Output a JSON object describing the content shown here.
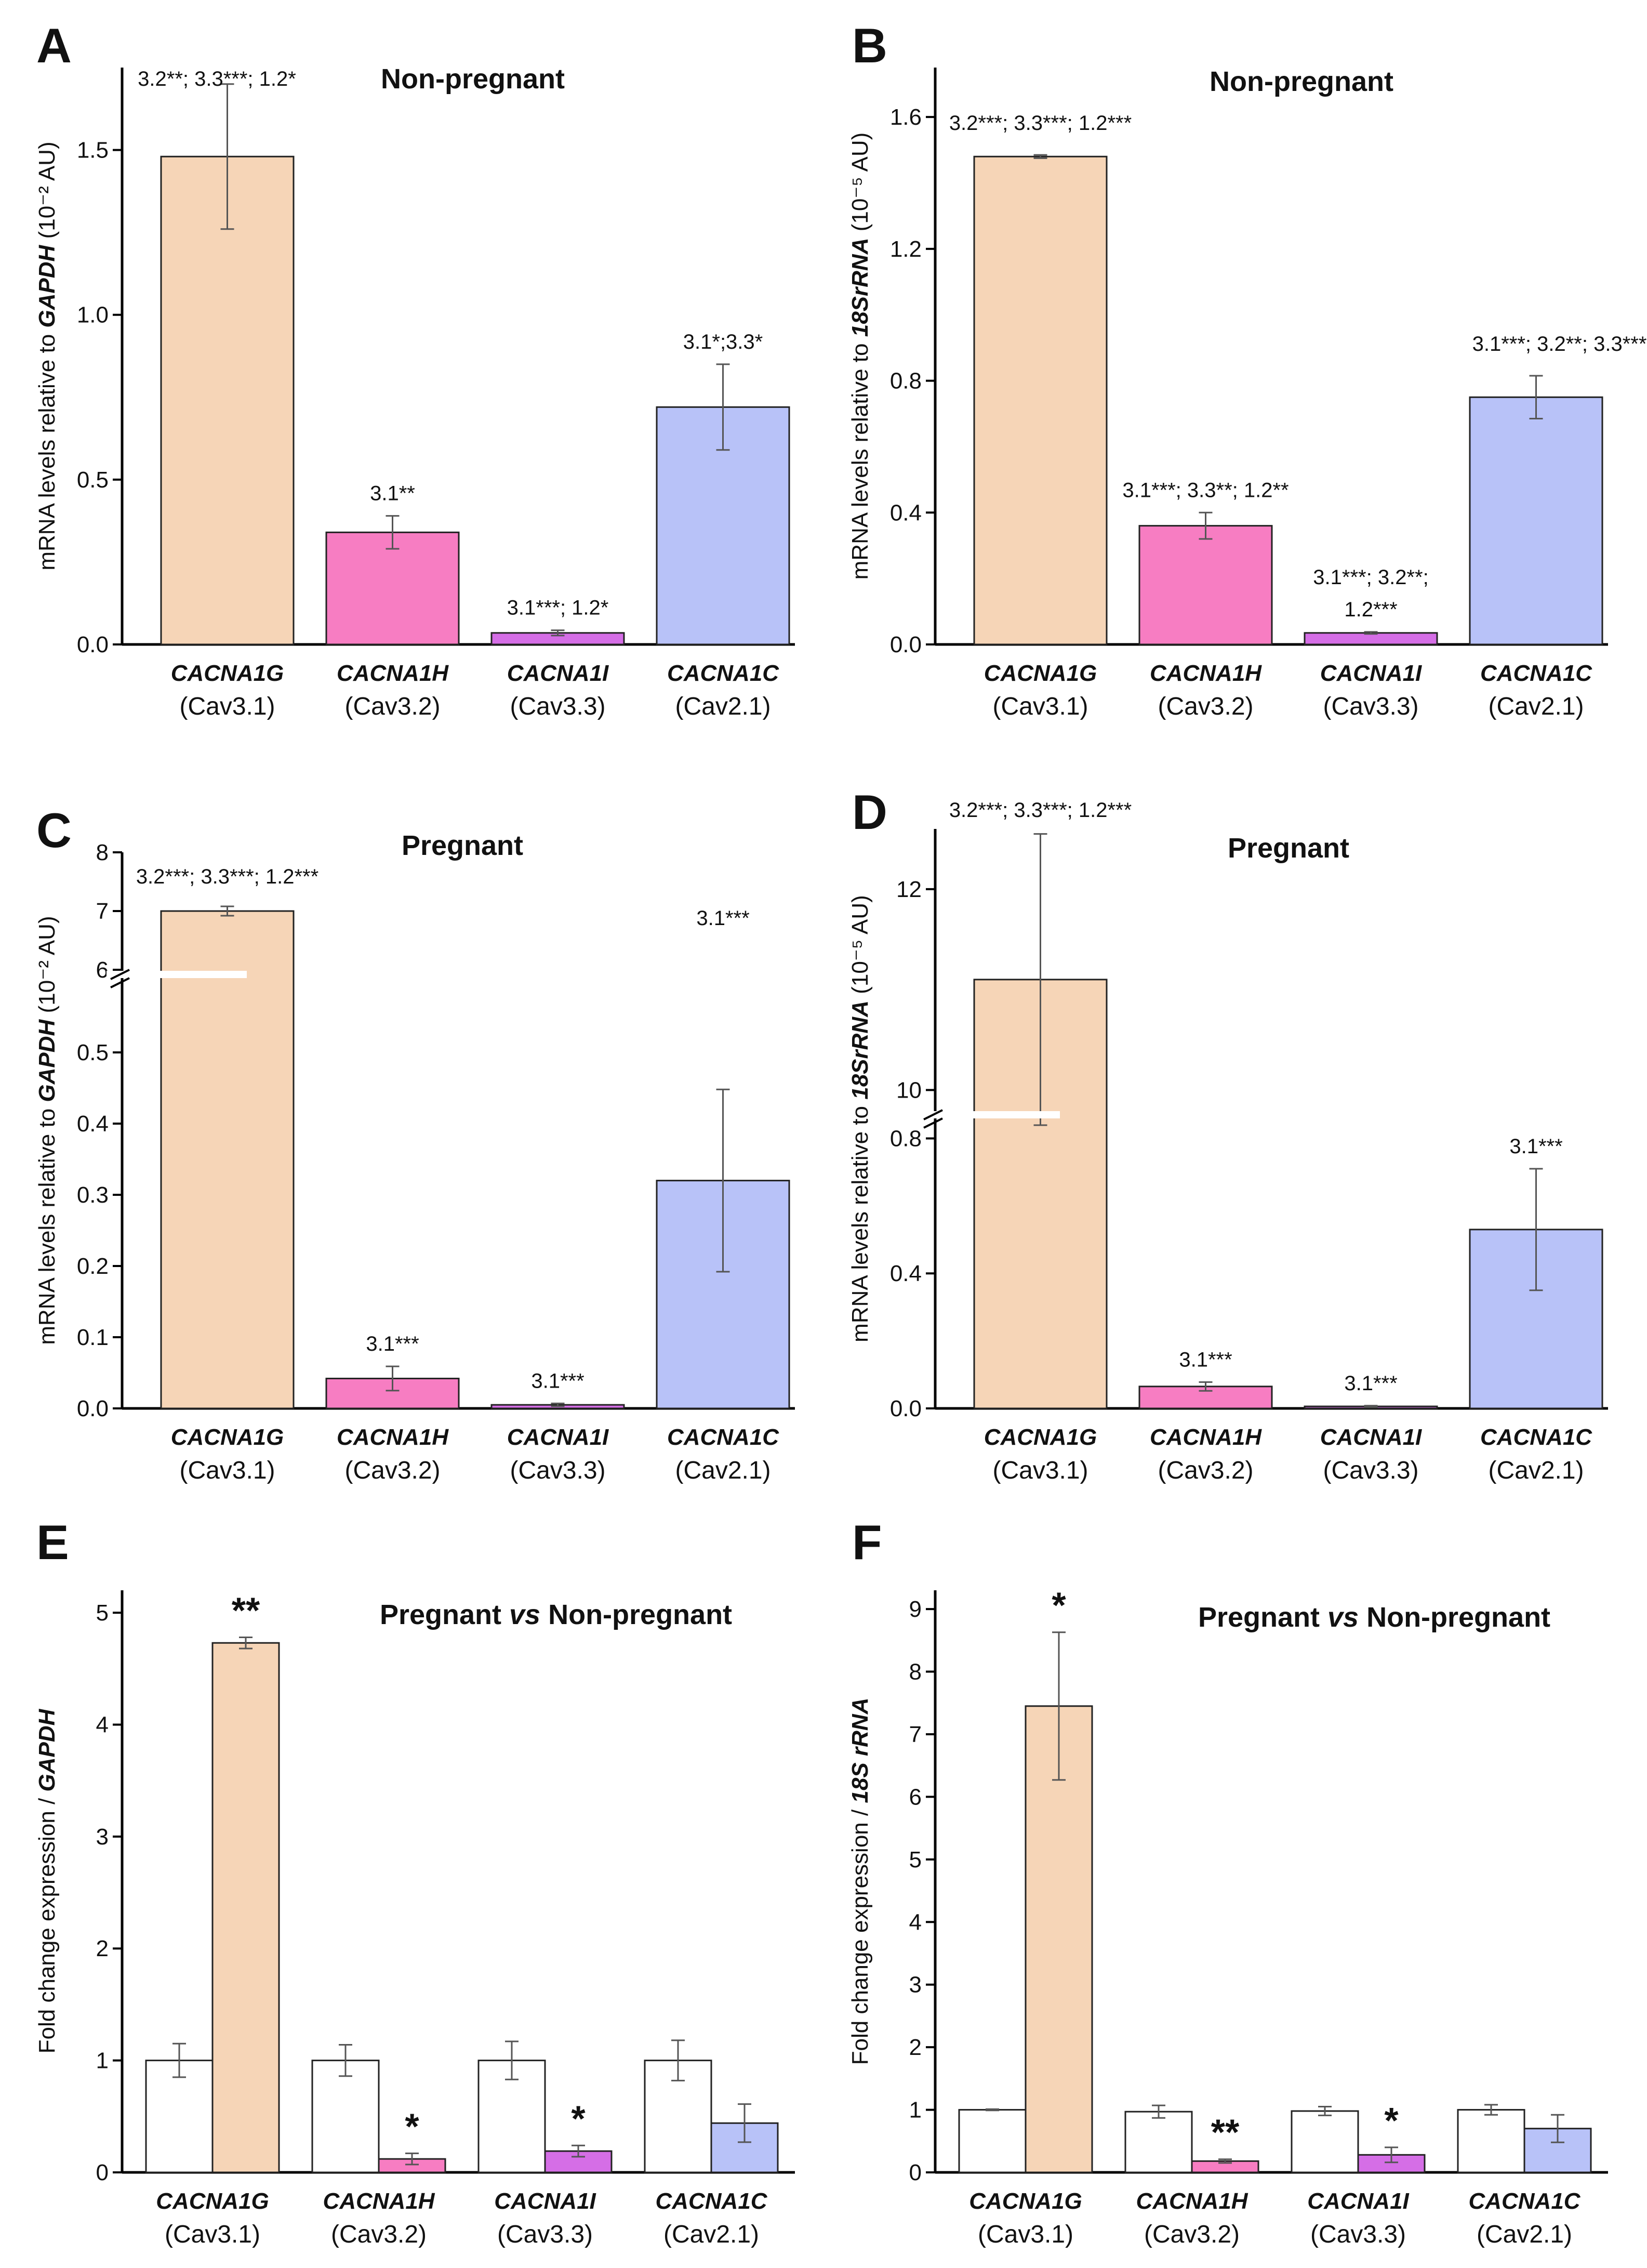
{
  "colors": {
    "CACNA1G": "#f6d5b7",
    "CACNA1H": "#f77dc2",
    "CACNA1I": "#d56ee6",
    "CACNA1C": "#b8c2f8",
    "control": "#ffffff",
    "axis": "#000000"
  },
  "chart_data": [
    {
      "id": "A",
      "type": "bar",
      "panel_label": "A",
      "title": "Non-pregnant",
      "ylabel": "mRNA levels relative to GAPDH (10⁻² AU)",
      "ylabel_parts": {
        "pre": "mRNA levels relative to ",
        "ref": "GAPDH",
        "post": " (10⁻² AU)"
      },
      "ylim": [
        0,
        1.75
      ],
      "yticks": [
        0.0,
        0.5,
        1.0,
        1.5
      ],
      "ytick_labels": [
        "0.0",
        "0.5",
        "1.0",
        "1.5"
      ],
      "categories": [
        "CACNA1G",
        "CACNA1H",
        "CACNA1I",
        "CACNA1C"
      ],
      "sublabels": [
        "(Cav3.1)",
        "(Cav3.2)",
        "(Cav3.3)",
        "(Cav2.1)"
      ],
      "values": [
        1.48,
        0.34,
        0.035,
        0.72
      ],
      "errors": [
        0.22,
        0.05,
        0.008,
        0.13
      ],
      "annotations": [
        "3.2**; 3.3***; 1.2*",
        "3.1**",
        "3.1***; 1.2*",
        "3.1*;3.3*"
      ]
    },
    {
      "id": "B",
      "type": "bar",
      "panel_label": "B",
      "title": "Non-pregnant",
      "ylabel": "mRNA levels relative to 18SrRNA (10⁻⁵ AU)",
      "ylabel_parts": {
        "pre": "mRNA levels relative to ",
        "ref": "18SrRNA",
        "post": " (10⁻⁵ AU)"
      },
      "ylim": [
        0,
        1.75
      ],
      "yticks": [
        0.0,
        0.4,
        0.8,
        1.2,
        1.6
      ],
      "ytick_labels": [
        "0.0",
        "0.4",
        "0.8",
        "1.2",
        "1.6"
      ],
      "categories": [
        "CACNA1G",
        "CACNA1H",
        "CACNA1I",
        "CACNA1C"
      ],
      "sublabels": [
        "(Cav3.1)",
        "(Cav3.2)",
        "(Cav3.3)",
        "(Cav2.1)"
      ],
      "values": [
        1.48,
        0.36,
        0.035,
        0.75
      ],
      "errors": [
        0.005,
        0.04,
        0.003,
        0.065
      ],
      "annotations": [
        "3.2***; 3.3***; 1.2***",
        "3.1***; 3.3**; 1.2**",
        [
          "3.1***; 3.2**;",
          "1.2***"
        ],
        "3.1***; 3.2**; 3.3***"
      ]
    },
    {
      "id": "C",
      "type": "bar",
      "panel_label": "C",
      "title": "Pregnant",
      "ylabel": "mRNA levels relative to GAPDH (10⁻² AU)",
      "ylabel_parts": {
        "pre": "mRNA levels relative to ",
        "ref": "GAPDH",
        "post": " (10⁻² AU)"
      },
      "broken_axis": {
        "low": [
          0,
          0.6
        ],
        "high": [
          6,
          8
        ]
      },
      "yticks": [
        0.0,
        0.1,
        0.2,
        0.3,
        0.4,
        0.5,
        6,
        7,
        8
      ],
      "ytick_labels": [
        "0.0",
        "0.1",
        "0.2",
        "0.3",
        "0.4",
        "0.5",
        "6",
        "7",
        "8"
      ],
      "categories": [
        "CACNA1G",
        "CACNA1H",
        "CACNA1I",
        "CACNA1C"
      ],
      "sublabels": [
        "(Cav3.1)",
        "(Cav3.2)",
        "(Cav3.3)",
        "(Cav2.1)"
      ],
      "values": [
        7.0,
        0.042,
        0.005,
        0.32
      ],
      "errors": [
        0.08,
        0.017,
        0.002,
        0.128
      ],
      "annotations": [
        "3.2***; 3.3***; 1.2***",
        "3.1***",
        "3.1***",
        "3.1***"
      ]
    },
    {
      "id": "D",
      "type": "bar",
      "panel_label": "D",
      "title": "Pregnant",
      "ylabel": "mRNA levels relative to 18SrRNA (10⁻⁵ AU)",
      "ylabel_parts": {
        "pre": "mRNA levels relative to ",
        "ref": "18SrRNA",
        "post": " (10⁻⁵ AU)"
      },
      "broken_axis": {
        "low": [
          0,
          0.85
        ],
        "high": [
          9.8,
          12.6
        ]
      },
      "yticks": [
        0.0,
        0.4,
        0.8,
        10,
        12
      ],
      "ytick_labels": [
        "0.0",
        "0.4",
        "0.8",
        "10",
        "12"
      ],
      "categories": [
        "CACNA1G",
        "CACNA1H",
        "CACNA1I",
        "CACNA1C"
      ],
      "sublabels": [
        "(Cav3.1)",
        "(Cav3.2)",
        "(Cav3.3)",
        "(Cav2.1)"
      ],
      "values": [
        11.1,
        0.065,
        0.006,
        0.53
      ],
      "errors": [
        1.45,
        0.013,
        0.002,
        0.18
      ],
      "annotations": [
        "3.2***; 3.3***; 1.2***",
        "3.1***",
        "3.1***",
        "3.1***"
      ]
    },
    {
      "id": "E",
      "type": "bar",
      "panel_label": "E",
      "title": "Pregnant vs Non-pregnant",
      "title_parts": {
        "pre": "Pregnant ",
        "vs": "vs",
        "post": " Non-pregnant"
      },
      "ylabel": "Fold change expression / GAPDH",
      "ylabel_parts": {
        "pre": "Fold change expression / ",
        "ref": "GAPDH",
        "post": ""
      },
      "ylim": [
        0,
        5.2
      ],
      "yticks": [
        0,
        1,
        2,
        3,
        4,
        5
      ],
      "ytick_labels": [
        "0",
        "1",
        "2",
        "3",
        "4",
        "5"
      ],
      "categories": [
        "CACNA1G",
        "CACNA1H",
        "CACNA1I",
        "CACNA1C"
      ],
      "sublabels": [
        "(Cav3.1)",
        "(Cav3.2)",
        "(Cav3.3)",
        "(Cav2.1)"
      ],
      "series": [
        {
          "name": "Non-pregnant",
          "values": [
            1.0,
            1.0,
            1.0,
            1.0
          ],
          "errors": [
            0.15,
            0.14,
            0.17,
            0.18
          ]
        },
        {
          "name": "Pregnant",
          "values": [
            4.73,
            0.12,
            0.19,
            0.44
          ],
          "errors": [
            0.05,
            0.05,
            0.05,
            0.17
          ]
        }
      ],
      "annotations": [
        "**",
        "*",
        "*",
        ""
      ]
    },
    {
      "id": "F",
      "type": "bar",
      "panel_label": "F",
      "title": "Pregnant vs Non-pregnant",
      "title_parts": {
        "pre": "Pregnant ",
        "vs": "vs",
        "post": " Non-pregnant"
      },
      "ylabel": "Fold change expression / 18S rRNA",
      "ylabel_parts": {
        "pre": "Fold change expression / ",
        "ref": "18S rRNA",
        "post": ""
      },
      "ylim": [
        0,
        9.3
      ],
      "yticks": [
        0,
        1,
        2,
        3,
        4,
        5,
        6,
        7,
        8,
        9
      ],
      "ytick_labels": [
        "0",
        "1",
        "2",
        "3",
        "4",
        "5",
        "6",
        "7",
        "8",
        "9"
      ],
      "categories": [
        "CACNA1G",
        "CACNA1H",
        "CACNA1I",
        "CACNA1C"
      ],
      "sublabels": [
        "(Cav3.1)",
        "(Cav3.2)",
        "(Cav3.3)",
        "(Cav2.1)"
      ],
      "series": [
        {
          "name": "Non-pregnant",
          "values": [
            1.0,
            0.97,
            0.98,
            1.0
          ],
          "errors": [
            0.01,
            0.1,
            0.07,
            0.08
          ]
        },
        {
          "name": "Pregnant",
          "values": [
            7.45,
            0.18,
            0.28,
            0.7
          ],
          "errors": [
            1.18,
            0.03,
            0.12,
            0.22
          ]
        }
      ],
      "annotations": [
        "*",
        "**",
        "*",
        ""
      ]
    }
  ]
}
